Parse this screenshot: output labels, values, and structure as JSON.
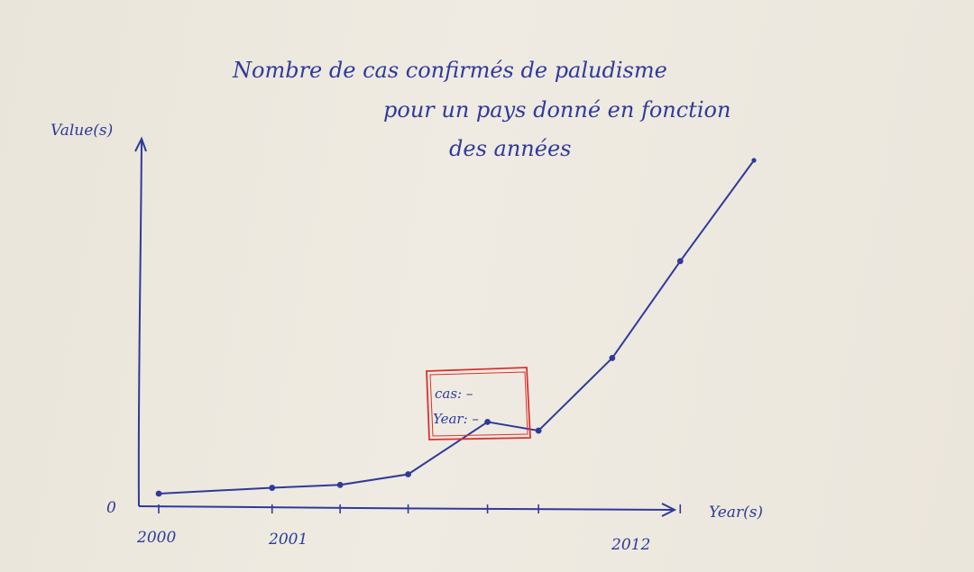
{
  "chart_data": {
    "type": "line",
    "title_lines": [
      "Nombre de cas confirmés de paludisme",
      "pour un pays donné en fonction",
      "des années"
    ],
    "xlabel": "Year(s)",
    "ylabel": "Value(s)",
    "x_tick_labels": [
      "2000",
      "2001",
      "2012"
    ],
    "y_tick_labels": [
      "0"
    ],
    "points": [
      {
        "x": 0.0,
        "y": 0.0
      },
      {
        "x": 1.0,
        "y": 0.3
      },
      {
        "x": 1.6,
        "y": 0.45
      },
      {
        "x": 2.2,
        "y": 1.0
      },
      {
        "x": 2.9,
        "y": 3.7
      },
      {
        "x": 3.35,
        "y": 3.25
      },
      {
        "x": 4.0,
        "y": 7.0
      },
      {
        "x": 4.6,
        "y": 12.0
      },
      {
        "x": 5.25,
        "y": 17.2
      }
    ],
    "x_ticks": [
      0,
      1,
      1.6,
      2.2,
      2.9,
      3.35,
      4.6
    ],
    "tick_label_positions": [
      0,
      1,
      4.6
    ],
    "xlim": [
      0,
      5.25
    ],
    "ylim": [
      0,
      17.2
    ],
    "tooltip": {
      "case_label": "cas: –",
      "year_label": "Year: –"
    },
    "colors": {
      "ink": "#2f3a9a",
      "tooltip_border": "#d8322e"
    }
  }
}
